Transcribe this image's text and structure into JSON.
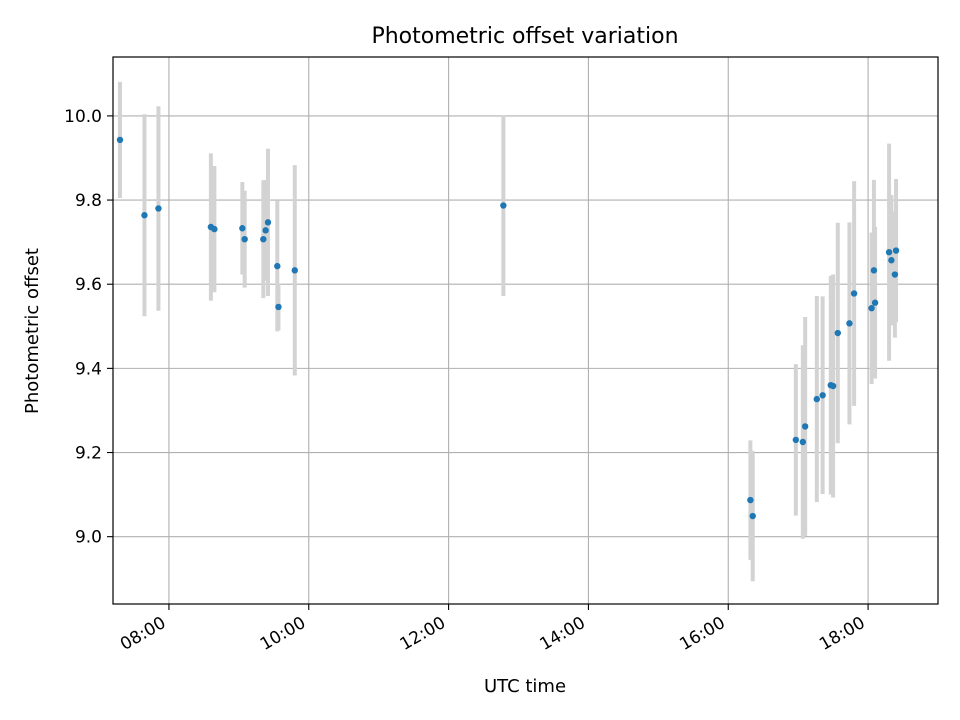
{
  "chart_data": {
    "type": "scatter",
    "title": "Photometric offset variation",
    "xlabel": "UTC time",
    "ylabel": "Photometric offset",
    "xlim": [
      "07:12",
      "19:00"
    ],
    "ylim": [
      8.84,
      10.14
    ],
    "x_ticks": [
      "08:00",
      "10:00",
      "12:00",
      "14:00",
      "16:00",
      "18:00"
    ],
    "y_ticks": [
      9.0,
      9.2,
      9.4,
      9.6,
      9.8,
      10.0
    ],
    "grid": true,
    "colors": {
      "points": "#1f77b4",
      "error_bars": "#d3d3d3",
      "grid": "#b0b0b0"
    },
    "points": [
      {
        "t": "07:18",
        "y": 9.943,
        "err": 0.138
      },
      {
        "t": "07:39",
        "y": 9.764,
        "err": 0.24
      },
      {
        "t": "07:51",
        "y": 9.78,
        "err": 0.243
      },
      {
        "t": "08:36",
        "y": 9.736,
        "err": 0.175
      },
      {
        "t": "08:39",
        "y": 9.731,
        "err": 0.15
      },
      {
        "t": "09:03",
        "y": 9.733,
        "err": 0.11
      },
      {
        "t": "09:05",
        "y": 9.707,
        "err": 0.115
      },
      {
        "t": "09:21",
        "y": 9.707,
        "err": 0.14
      },
      {
        "t": "09:23",
        "y": 9.728,
        "err": 0.12
      },
      {
        "t": "09:25",
        "y": 9.747,
        "err": 0.175
      },
      {
        "t": "09:33",
        "y": 9.643,
        "err": 0.155
      },
      {
        "t": "09:34",
        "y": 9.546,
        "err": 0.055
      },
      {
        "t": "09:48",
        "y": 9.633,
        "err": 0.25
      },
      {
        "t": "12:47",
        "y": 9.787,
        "err": 0.215
      },
      {
        "t": "16:19",
        "y": 9.087,
        "err": 0.142
      },
      {
        "t": "16:21",
        "y": 9.049,
        "err": 0.155
      },
      {
        "t": "16:58",
        "y": 9.23,
        "err": 0.18
      },
      {
        "t": "17:04",
        "y": 9.225,
        "err": 0.23
      },
      {
        "t": "17:06",
        "y": 9.262,
        "err": 0.26
      },
      {
        "t": "17:16",
        "y": 9.327,
        "err": 0.245
      },
      {
        "t": "17:21",
        "y": 9.336,
        "err": 0.235
      },
      {
        "t": "17:28",
        "y": 9.36,
        "err": 0.26
      },
      {
        "t": "17:30",
        "y": 9.358,
        "err": 0.265
      },
      {
        "t": "17:34",
        "y": 9.484,
        "err": 0.262
      },
      {
        "t": "17:44",
        "y": 9.507,
        "err": 0.24
      },
      {
        "t": "17:48",
        "y": 9.578,
        "err": 0.267
      },
      {
        "t": "18:03",
        "y": 9.543,
        "err": 0.18
      },
      {
        "t": "18:05",
        "y": 9.633,
        "err": 0.215
      },
      {
        "t": "18:06",
        "y": 9.556,
        "err": 0.18
      },
      {
        "t": "18:18",
        "y": 9.676,
        "err": 0.258
      },
      {
        "t": "18:20",
        "y": 9.657,
        "err": 0.155
      },
      {
        "t": "18:23",
        "y": 9.623,
        "err": 0.15
      },
      {
        "t": "18:24",
        "y": 9.68,
        "err": 0.17
      }
    ]
  }
}
